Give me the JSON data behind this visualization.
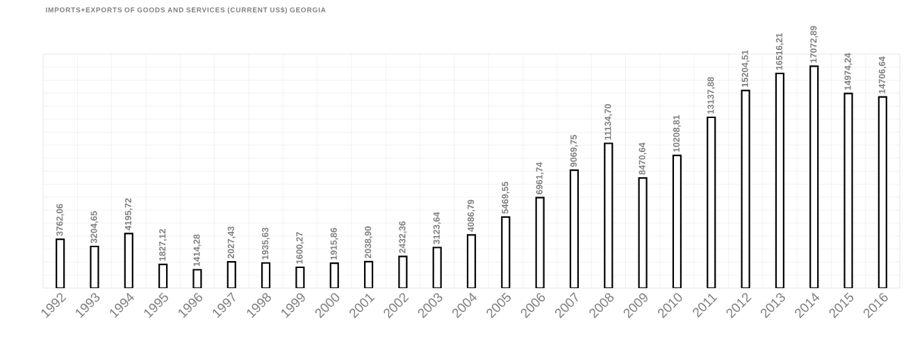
{
  "chart_data": {
    "type": "bar",
    "title": "IMPORTS+EXPORTS OF GOODS AND SERVICES (CURRENT US$) GEORGIA",
    "categories": [
      "1992",
      "1993",
      "1994",
      "1995",
      "1996",
      "1997",
      "1998",
      "1999",
      "2000",
      "2001",
      "2002",
      "2003",
      "2004",
      "2005",
      "2006",
      "2007",
      "2008",
      "2009",
      "2010",
      "2011",
      "2012",
      "2013",
      "2014",
      "2015",
      "2016"
    ],
    "values": [
      3762.06,
      3204.65,
      4195.72,
      1827.12,
      1414.28,
      2027.43,
      1935.63,
      1600.27,
      1915.86,
      2038.9,
      2432.36,
      3123.64,
      4086.79,
      5469.55,
      6961.74,
      9069.75,
      11134.7,
      8470.64,
      10208.81,
      13137.88,
      15204.51,
      16516.21,
      17072.89,
      14974.24,
      14706.64
    ],
    "value_labels": [
      "3762,06",
      "3204,65",
      "4195,72",
      "1827,12",
      "1414,28",
      "2027,43",
      "1935,63",
      "1600,27",
      "1915,86",
      "2038,90",
      "2432,36",
      "3123,64",
      "4086,79",
      "5469,55",
      "6961,74",
      "9069,75",
      "11134,70",
      "8470,64",
      "10208,81",
      "13137,88",
      "15204,51",
      "16516,21",
      "17072,89",
      "14974,24",
      "14706,64"
    ],
    "color": "#ffffff",
    "ylim": [
      0,
      18000
    ],
    "yticks": [
      {
        "value": 0,
        "label": null
      },
      {
        "value": 1000,
        "label": null
      },
      {
        "value": 2000,
        "label": null
      },
      {
        "value": 3000,
        "label": null
      },
      {
        "value": 4000,
        "label": null
      },
      {
        "value": 5000,
        "label": null
      },
      {
        "value": 6000,
        "label": null
      },
      {
        "value": 7000,
        "label": null
      },
      {
        "value": 8000,
        "label": null
      },
      {
        "value": 9000,
        "label": null
      },
      {
        "value": 10000,
        "label": null
      },
      {
        "value": 11000,
        "label": null
      },
      {
        "value": 12000,
        "label": null
      },
      {
        "value": 13000,
        "label": null
      },
      {
        "value": 14000,
        "label": null
      },
      {
        "value": 15000,
        "label": null
      },
      {
        "value": 16000,
        "label": null
      },
      {
        "value": 17000,
        "label": null
      },
      {
        "value": 18000,
        "label": null
      }
    ],
    "grid": true,
    "tick_labels": "x"
  }
}
